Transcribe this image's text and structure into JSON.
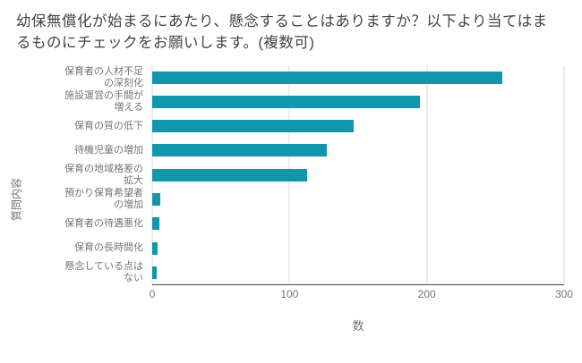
{
  "title": "幼保無償化が始まるにあたり、懸念することはありますか？以下より当てはまるものにチェックをお願いします。(複数可)",
  "chart_data": {
    "type": "bar",
    "orientation": "horizontal",
    "title": "幼保無償化が始まるにあたり、懸念することはありますか？以下より当てはまるものにチェックをお願いします。(複数可)",
    "categories": [
      "保育者の人材不足の深刻化",
      "施設運営の手間が増える",
      "保育の質の低下",
      "待機児童の増加",
      "保育の地域格差の拡大",
      "預かり保育希望者の増加",
      "保育者の待遇悪化",
      "保育の長時間化",
      "懸念している点はない"
    ],
    "values": [
      255,
      195,
      147,
      127,
      113,
      6,
      5,
      4,
      3
    ],
    "xlabel": "数",
    "ylabel": "質問内容",
    "xlim": [
      0,
      300
    ],
    "xticks": [
      0,
      100,
      200,
      300
    ],
    "grid": true,
    "legend": "none",
    "bar_color": "#1196ac"
  },
  "colors": {
    "bar": "#1196ac",
    "title_text": "#424242",
    "axis_text": "#757575",
    "gridline": "#d9d9d9",
    "axis_line": "#424242",
    "background": "#ffffff"
  }
}
